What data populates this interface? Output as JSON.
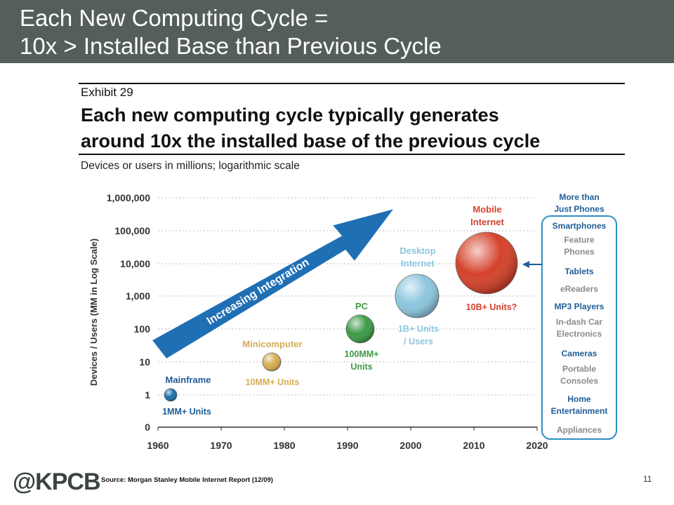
{
  "slide": {
    "title_line1": "Each New Computing Cycle =",
    "title_line2": "10x > Installed Base than Previous Cycle",
    "exhibit": "Exhibit 29",
    "headline_line1": "Each new computing cycle typically generates",
    "headline_line2": "around 10x the installed base of the previous cycle",
    "subtitle": "Devices or users in millions; logarithmic scale",
    "logo": "@KPCB",
    "source": "Source: Morgan Stanley Mobile Internet Report (12/09)",
    "page_number": "11"
  },
  "colors": {
    "header_bg": "#545f5b",
    "arrow": "#1f6fb4",
    "mainframe": "#1b6fae",
    "minicomputer": "#d7ad52",
    "pc": "#3c9a45",
    "desktop": "#8cc6de",
    "mobile": "#d4412a",
    "sidebar_border": "#2f8fc4",
    "label_blue": "#1f5d98",
    "label_gray": "#8a8a8a"
  },
  "chart_data": {
    "type": "scatter",
    "ylabel": "Devices / Users (MM in Log Scale)",
    "y_scale": "log",
    "yticks": [
      "1,000,000",
      "100,000",
      "10,000",
      "1,000",
      "100",
      "10",
      "1",
      "0"
    ],
    "xticks": [
      "1960",
      "1970",
      "1980",
      "1990",
      "2000",
      "2010",
      "2020"
    ],
    "xlim": [
      1960,
      2020
    ],
    "ylim": [
      0,
      1000000
    ],
    "grid": true,
    "arrow_label": "Increasing Integration",
    "series": [
      {
        "name": "Mainframe",
        "x": 1962,
        "y": 1,
        "units_label": "1MM+ Units",
        "color": "#1b6fae"
      },
      {
        "name": "Minicomputer",
        "x": 1978,
        "y": 10,
        "units_label": "10MM+ Units",
        "color": "#d7ad52"
      },
      {
        "name": "PC",
        "x": 1992,
        "y": 100,
        "units_label": "100MM+ Units",
        "color": "#3c9a45"
      },
      {
        "name": "Desktop Internet",
        "x": 2001,
        "y": 1000,
        "units_label": "1B+ Units / Users",
        "color": "#8cc6de"
      },
      {
        "name": "Mobile Internet",
        "x": 2012,
        "y": 10000,
        "units_label": "10B+ Units?",
        "color": "#d4412a"
      }
    ],
    "sidebar": {
      "heading": "More than Just Phones",
      "items": [
        {
          "label": "Smartphones",
          "highlight": true
        },
        {
          "label": "Feature Phones",
          "highlight": false
        },
        {
          "label": "Tablets",
          "highlight": true
        },
        {
          "label": "eReaders",
          "highlight": false
        },
        {
          "label": "MP3 Players",
          "highlight": true
        },
        {
          "label": "In-dash Car Electronics",
          "highlight": false
        },
        {
          "label": "Cameras",
          "highlight": true
        },
        {
          "label": "Portable Consoles",
          "highlight": false
        },
        {
          "label": "Home Entertainment",
          "highlight": true
        },
        {
          "label": "Appliances",
          "highlight": false
        }
      ]
    }
  }
}
